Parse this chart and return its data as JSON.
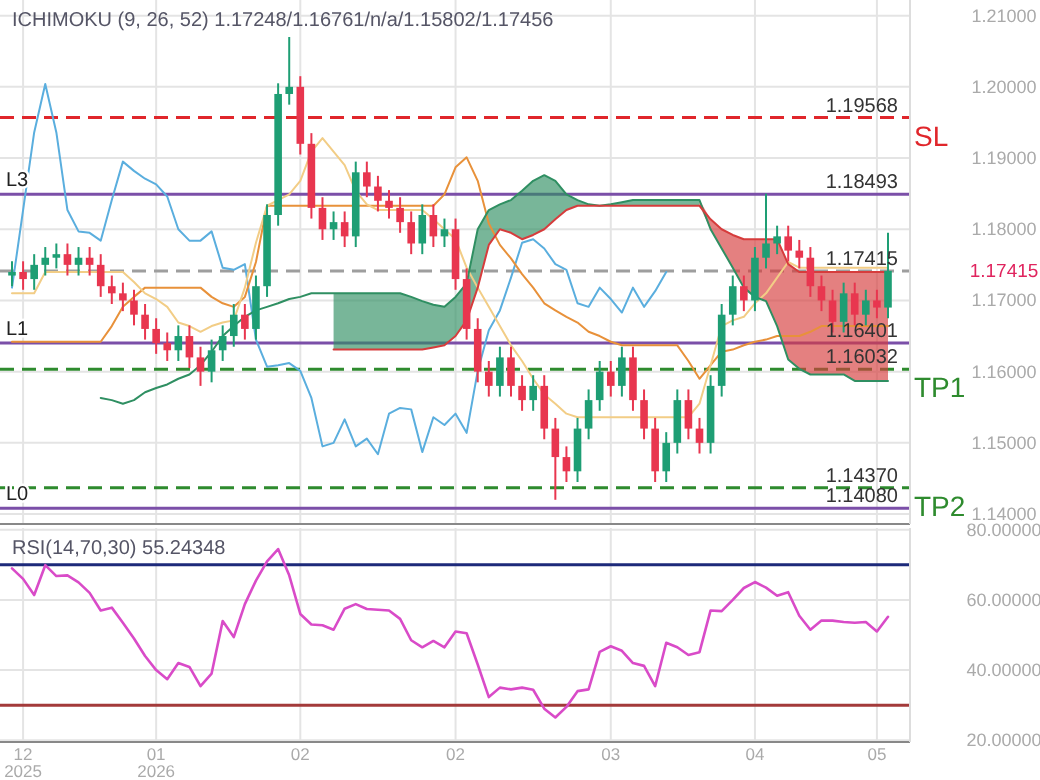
{
  "chart_data": [
    {
      "type": "candlestick",
      "title": "ICHIMOKU (9, 26, 52)   1.17248/1.16761/n/a/1.15802/1.17456",
      "categories": [
        null,
        null,
        null,
        null,
        null,
        null,
        null,
        null,
        null,
        null,
        null,
        null,
        null,
        null,
        null,
        null,
        null,
        null,
        null,
        null,
        null,
        null,
        null,
        null,
        null,
        null,
        null,
        null,
        null,
        null,
        null,
        null,
        null,
        null,
        null,
        null,
        null,
        null,
        null,
        null,
        null,
        null,
        null,
        null,
        null,
        null,
        null,
        null,
        null,
        null,
        null,
        null,
        null,
        null,
        null,
        null,
        null,
        null,
        null,
        null,
        null,
        null,
        null,
        null,
        null,
        null,
        null,
        null,
        null,
        null,
        null,
        null,
        null,
        null,
        null,
        null,
        null,
        null,
        null,
        null
      ],
      "ohlc": [
        [
          1.1735,
          1.1755,
          1.172,
          1.174
        ],
        [
          1.174,
          1.1755,
          1.1715,
          1.173
        ],
        [
          1.173,
          1.1765,
          1.1715,
          1.175
        ],
        [
          1.175,
          1.1775,
          1.1735,
          1.176
        ],
        [
          1.176,
          1.178,
          1.1745,
          1.1765
        ],
        [
          1.1765,
          1.178,
          1.1735,
          1.175
        ],
        [
          1.175,
          1.1775,
          1.1735,
          1.176
        ],
        [
          1.176,
          1.1775,
          1.1735,
          1.175
        ],
        [
          1.175,
          1.1765,
          1.1705,
          1.172
        ],
        [
          1.172,
          1.1735,
          1.1695,
          1.171
        ],
        [
          1.171,
          1.1725,
          1.1685,
          1.17
        ],
        [
          1.17,
          1.1715,
          1.1665,
          1.168
        ],
        [
          1.168,
          1.1695,
          1.1645,
          1.166
        ],
        [
          1.166,
          1.1675,
          1.1625,
          1.164
        ],
        [
          1.164,
          1.1655,
          1.1615,
          1.163
        ],
        [
          1.163,
          1.1665,
          1.1615,
          1.165
        ],
        [
          1.165,
          1.1665,
          1.1605,
          1.162
        ],
        [
          1.162,
          1.1635,
          1.158,
          1.16
        ],
        [
          1.16,
          1.1645,
          1.1585,
          1.163
        ],
        [
          1.163,
          1.1665,
          1.1615,
          1.165
        ],
        [
          1.165,
          1.1695,
          1.1635,
          1.168
        ],
        [
          1.168,
          1.1695,
          1.1645,
          1.166
        ],
        [
          1.166,
          1.1735,
          1.1645,
          1.172
        ],
        [
          1.172,
          1.1835,
          1.1705,
          1.182
        ],
        [
          1.182,
          1.2005,
          1.1805,
          1.199
        ],
        [
          1.199,
          1.207,
          1.1975,
          1.2
        ],
        [
          1.2,
          1.2015,
          1.1905,
          1.192
        ],
        [
          1.192,
          1.1935,
          1.1815,
          1.183
        ],
        [
          1.183,
          1.1845,
          1.1785,
          1.18
        ],
        [
          1.18,
          1.1825,
          1.1785,
          1.181
        ],
        [
          1.181,
          1.1825,
          1.1775,
          1.179
        ],
        [
          1.179,
          1.1895,
          1.1775,
          1.188
        ],
        [
          1.188,
          1.1895,
          1.1845,
          1.186
        ],
        [
          1.186,
          1.1875,
          1.1825,
          1.184
        ],
        [
          1.184,
          1.1855,
          1.1815,
          1.183
        ],
        [
          1.183,
          1.1845,
          1.1795,
          1.181
        ],
        [
          1.181,
          1.1825,
          1.1765,
          1.178
        ],
        [
          1.178,
          1.1835,
          1.1765,
          1.182
        ],
        [
          1.182,
          1.1835,
          1.1775,
          1.179
        ],
        [
          1.179,
          1.1815,
          1.1775,
          1.18
        ],
        [
          1.18,
          1.1815,
          1.1715,
          1.173
        ],
        [
          1.173,
          1.1745,
          1.1645,
          1.166
        ],
        [
          1.166,
          1.1675,
          1.1585,
          1.16
        ],
        [
          1.16,
          1.1615,
          1.1565,
          1.158
        ],
        [
          1.158,
          1.1635,
          1.1565,
          1.162
        ],
        [
          1.162,
          1.1635,
          1.1565,
          1.158
        ],
        [
          1.158,
          1.1595,
          1.1545,
          1.156
        ],
        [
          1.156,
          1.1595,
          1.1545,
          1.158
        ],
        [
          1.158,
          1.1595,
          1.1505,
          1.152
        ],
        [
          1.152,
          1.1535,
          1.142,
          1.148
        ],
        [
          1.148,
          1.1495,
          1.1445,
          1.146
        ],
        [
          1.146,
          1.1535,
          1.1445,
          1.152
        ],
        [
          1.152,
          1.1575,
          1.1505,
          1.156
        ],
        [
          1.156,
          1.1615,
          1.1545,
          1.16
        ],
        [
          1.16,
          1.1615,
          1.1565,
          1.158
        ],
        [
          1.158,
          1.1635,
          1.1565,
          1.162
        ],
        [
          1.162,
          1.1635,
          1.1545,
          1.156
        ],
        [
          1.156,
          1.1575,
          1.1505,
          1.152
        ],
        [
          1.152,
          1.1535,
          1.1445,
          1.146
        ],
        [
          1.146,
          1.1515,
          1.1445,
          1.15
        ],
        [
          1.15,
          1.1575,
          1.1485,
          1.156
        ],
        [
          1.156,
          1.1575,
          1.1505,
          1.152
        ],
        [
          1.152,
          1.1535,
          1.1485,
          1.15
        ],
        [
          1.15,
          1.1595,
          1.1485,
          1.158
        ],
        [
          1.158,
          1.1695,
          1.1565,
          1.168
        ],
        [
          1.168,
          1.1735,
          1.1665,
          1.172
        ],
        [
          1.172,
          1.1735,
          1.1685,
          1.17
        ],
        [
          1.17,
          1.1775,
          1.1685,
          1.176
        ],
        [
          1.176,
          1.185,
          1.1745,
          1.178
        ],
        [
          1.178,
          1.1805,
          1.1765,
          1.179
        ],
        [
          1.179,
          1.1805,
          1.1755,
          1.177
        ],
        [
          1.177,
          1.1785,
          1.1745,
          1.176
        ],
        [
          1.176,
          1.1775,
          1.1705,
          1.172
        ],
        [
          1.172,
          1.1735,
          1.1685,
          1.17
        ],
        [
          1.17,
          1.1715,
          1.1655,
          1.167
        ],
        [
          1.167,
          1.1725,
          1.1655,
          1.171
        ],
        [
          1.171,
          1.1725,
          1.1665,
          1.168
        ],
        [
          1.168,
          1.1715,
          1.1665,
          1.17
        ],
        [
          1.17,
          1.1715,
          1.1675,
          1.169
        ],
        [
          1.169,
          1.1795,
          1.1675,
          1.17415
        ]
      ],
      "colors": [
        "#1e9e74",
        "#e8364f",
        "#1e9e74",
        "#1e9e74",
        "#1e9e74",
        "#e8364f",
        "#1e9e74",
        "#e8364f",
        "#e8364f",
        "#e8364f",
        "#e8364f",
        "#e8364f",
        "#e8364f",
        "#e8364f",
        "#e8364f",
        "#1e9e74",
        "#e8364f",
        "#e8364f",
        "#1e9e74",
        "#1e9e74",
        "#1e9e74",
        "#e8364f",
        "#1e9e74",
        "#1e9e74",
        "#1e9e74",
        "#1e9e74",
        "#e8364f",
        "#e8364f",
        "#e8364f",
        "#1e9e74",
        "#e8364f",
        "#1e9e74",
        "#e8364f",
        "#e8364f",
        "#e8364f",
        "#e8364f",
        "#e8364f",
        "#1e9e74",
        "#e8364f",
        "#1e9e74",
        "#e8364f",
        "#e8364f",
        "#e8364f",
        "#e8364f",
        "#1e9e74",
        "#e8364f",
        "#e8364f",
        "#1e9e74",
        "#e8364f",
        "#e8364f",
        "#e8364f",
        "#1e9e74",
        "#1e9e74",
        "#1e9e74",
        "#e8364f",
        "#1e9e74",
        "#e8364f",
        "#e8364f",
        "#e8364f",
        "#1e9e74",
        "#1e9e74",
        "#e8364f",
        "#e8364f",
        "#1e9e74",
        "#1e9e74",
        "#1e9e74",
        "#e8364f",
        "#1e9e74",
        "#1e9e74",
        "#1e9e74",
        "#e8364f",
        "#e8364f",
        "#e8364f",
        "#e8364f",
        "#e8364f",
        "#1e9e74",
        "#e8364f",
        "#1e9e74",
        "#e8364f",
        "#1e9e74"
      ],
      "series": [
        {
          "type": "line",
          "color": "#5aaede",
          "values": [
            1.1718,
            1.1827,
            1.1936,
            1.2004,
            1.1936,
            1.1827,
            1.1797,
            1.1795,
            1.1784,
            1.1841,
            1.1895,
            1.1882,
            1.1871,
            1.1863,
            1.1846,
            1.18,
            1.1784,
            1.1784,
            1.1797,
            1.1746,
            1.1743,
            1.1751,
            1.1645,
            1.1607,
            1.1609,
            1.1612,
            1.1601,
            1.1563,
            1.1495,
            1.15,
            1.1533,
            1.1495,
            1.1506,
            1.1484,
            1.1541,
            1.1549,
            1.1547,
            1.1487,
            1.1536,
            1.1525,
            1.1541,
            1.1514,
            1.1601,
            1.1658,
            1.1686,
            1.1732,
            1.1781,
            1.1786,
            1.1773,
            1.1751,
            1.1743,
            1.1696,
            1.1691,
            1.1718,
            1.1702,
            1.1683,
            1.1718,
            1.1691,
            1.1713,
            1.174,
            null,
            null,
            null,
            null,
            null,
            null,
            null,
            null,
            null,
            null,
            null,
            null,
            null,
            null,
            null,
            null,
            null,
            null,
            null,
            null
          ]
        },
        {
          "type": "line",
          "color": "#e8913a",
          "values": [
            1.1642,
            1.1642,
            1.1642,
            1.1642,
            1.1642,
            1.1642,
            1.1642,
            1.1642,
            1.1642,
            1.1664,
            1.1691,
            1.1705,
            1.1718,
            1.1718,
            1.1718,
            1.1718,
            1.1718,
            1.1718,
            1.1705,
            1.1696,
            1.1691,
            1.1705,
            1.1754,
            1.1833,
            1.1833,
            1.1833,
            1.1833,
            1.1833,
            1.1833,
            1.1833,
            1.1833,
            1.1833,
            1.1833,
            1.1833,
            1.1833,
            1.1833,
            1.1833,
            1.1833,
            1.1833,
            1.1849,
            1.1887,
            1.1901,
            1.1868,
            1.1808,
            1.1778,
            1.1759,
            1.1737,
            1.1718,
            1.1696,
            1.1686,
            1.1677,
            1.1669,
            1.1656,
            1.165,
            1.1642,
            1.1637,
            1.1637,
            1.1637,
            1.1637,
            1.1637,
            1.1637,
            1.1615,
            1.159,
            1.1609,
            1.1628,
            1.1631,
            1.1637,
            1.1642,
            1.1645,
            1.165,
            1.165,
            1.165,
            1.1656,
            1.1664,
            1.1664,
            1.1664,
            1.1664,
            1.1664,
            1.1664,
            1.1664
          ]
        },
        {
          "type": "line",
          "color": "#f2cd86",
          "values": [
            1.171,
            1.171,
            1.171,
            1.174,
            1.174,
            1.174,
            1.174,
            1.174,
            1.174,
            1.174,
            1.174,
            1.1726,
            1.171,
            1.1702,
            1.1691,
            1.1669,
            1.1664,
            1.1656,
            1.1664,
            1.1669,
            1.1672,
            1.1718,
            1.1781,
            1.1833,
            1.1841,
            1.1849,
            1.1868,
            1.1909,
            1.1928,
            1.1909,
            1.189,
            1.1854,
            1.1835,
            1.1827,
            1.1827,
            1.1827,
            1.1827,
            1.1827,
            1.1814,
            1.18,
            1.1786,
            1.1746,
            1.1718,
            1.1691,
            1.1664,
            1.1637,
            1.1615,
            1.159,
            1.1568,
            1.1555,
            1.1541,
            1.1536,
            1.1536,
            1.1536,
            1.1536,
            1.1536,
            1.1536,
            1.1536,
            1.1536,
            1.1536,
            1.1536,
            1.1536,
            1.1555,
            1.1609,
            1.1664,
            1.1672,
            1.1677,
            1.1696,
            1.171,
            1.1732,
            1.1754,
            1.1746,
            1.1746,
            1.1746,
            1.1746,
            1.1746,
            1.1746,
            1.1746,
            1.1746,
            1.1746
          ]
        },
        {
          "type": "line",
          "color": "#2f8f62",
          "lower": [
            null,
            null,
            null,
            null,
            null,
            null,
            null,
            null,
            null,
            null,
            null,
            null,
            null,
            null,
            null,
            null,
            null,
            null,
            null,
            null,
            null,
            null,
            null,
            null,
            null,
            null,
            null,
            null,
            null,
            1.1631,
            1.1631,
            1.1631,
            1.1631,
            1.1631,
            1.1631,
            1.1631,
            1.1631,
            1.1631,
            1.1634,
            1.1637,
            1.165,
            1.1672,
            1.1718,
            1.1778,
            1.18,
            1.1795,
            1.1786,
            1.1792,
            1.18,
            1.1814,
            1.1827,
            1.1833,
            1.1833,
            1.1833,
            1.1833,
            1.1833,
            1.1833,
            1.1833,
            1.1833,
            1.1833,
            1.1833,
            1.1833,
            1.1833,
            null,
            null,
            null,
            null,
            null,
            null,
            null,
            null,
            null,
            null,
            null,
            null,
            null,
            null,
            null,
            null,
            null
          ],
          "upper": [
            null,
            null,
            null,
            null,
            null,
            null,
            null,
            null,
            null,
            null,
            null,
            null,
            null,
            null,
            null,
            null,
            null,
            null,
            null,
            null,
            null,
            null,
            null,
            null,
            null,
            null,
            null,
            null,
            null,
            1.171,
            1.171,
            1.171,
            1.171,
            1.171,
            1.171,
            1.171,
            1.1705,
            1.1699,
            1.1694,
            1.1691,
            1.1705,
            1.1724,
            1.18,
            1.1827,
            1.1835,
            1.1841,
            1.1854,
            1.1868,
            1.1876,
            1.1868,
            1.1849,
            1.1841,
            1.1835,
            1.1833,
            1.1835,
            1.1838,
            1.1841,
            1.1841,
            1.1841,
            1.1841,
            1.1841,
            1.1841,
            1.1841,
            null,
            null,
            null,
            null,
            null,
            null,
            null,
            null,
            null,
            null,
            null,
            null,
            null,
            null,
            null,
            null,
            null
          ],
          "values": [
            null,
            null,
            null,
            null,
            null,
            null,
            null,
            null,
            1.1563,
            1.156,
            1.1555,
            1.156,
            1.1571,
            1.1577,
            1.1582,
            1.159,
            1.1596,
            1.1609,
            1.1628,
            1.165,
            1.1664,
            1.1677,
            1.1686,
            1.1691,
            1.1696,
            1.1702,
            1.1705,
            1.171,
            1.171,
            1.171,
            1.171,
            1.171,
            1.171,
            1.171,
            1.171,
            1.171,
            1.1705,
            1.1699,
            1.1694,
            1.1691,
            1.1705,
            1.1724,
            1.18,
            1.1827,
            1.1835,
            1.1841,
            1.1854,
            1.1868,
            1.1876,
            1.1868,
            1.1849,
            1.1841,
            1.1835,
            1.1833,
            1.1835,
            1.1838,
            1.1841,
            1.1841,
            1.1841,
            1.1841,
            1.1841,
            1.1841,
            1.1841,
            1.18,
            1.1773,
            1.1746,
            1.1718,
            1.1705,
            1.1699,
            1.1664,
            1.1617,
            1.1604,
            1.1596,
            1.1596,
            1.1596,
            1.1596,
            1.1587,
            1.1587,
            1.1587,
            1.1587
          ]
        },
        {
          "type": "line",
          "color": "#d63c3c",
          "lower": [
            null,
            null,
            null,
            null,
            null,
            null,
            null,
            null,
            null,
            null,
            null,
            null,
            null,
            null,
            null,
            null,
            null,
            null,
            null,
            null,
            null,
            null,
            null,
            null,
            null,
            null,
            null,
            null,
            null,
            null,
            null,
            null,
            null,
            null,
            null,
            null,
            null,
            null,
            null,
            null,
            null,
            null,
            null,
            null,
            null,
            null,
            null,
            null,
            null,
            null,
            null,
            null,
            null,
            null,
            null,
            null,
            null,
            null,
            null,
            null,
            null,
            null,
            1.1833,
            1.18,
            1.1773,
            1.1746,
            1.1718,
            1.1705,
            1.1699,
            1.1664,
            1.1617,
            1.1604,
            1.1596,
            1.1596,
            1.1596,
            1.1596,
            1.1587,
            1.1587,
            1.1587,
            1.1587
          ],
          "upper": [
            null,
            null,
            null,
            null,
            null,
            null,
            null,
            null,
            null,
            null,
            null,
            null,
            null,
            null,
            null,
            null,
            null,
            null,
            null,
            null,
            null,
            null,
            null,
            null,
            null,
            null,
            null,
            null,
            null,
            null,
            null,
            null,
            null,
            null,
            null,
            null,
            null,
            null,
            null,
            null,
            null,
            null,
            null,
            null,
            null,
            null,
            null,
            null,
            null,
            null,
            null,
            null,
            null,
            null,
            null,
            null,
            null,
            null,
            null,
            null,
            null,
            null,
            1.1841,
            1.1814,
            1.18,
            1.1792,
            1.1786,
            1.1786,
            1.1786,
            1.1786,
            1.1751,
            1.174,
            1.174,
            1.174,
            1.174,
            1.174,
            1.174,
            1.174,
            1.174,
            1.174
          ],
          "values": [
            null,
            null,
            null,
            null,
            null,
            null,
            null,
            null,
            null,
            null,
            null,
            null,
            null,
            null,
            null,
            null,
            null,
            null,
            null,
            null,
            null,
            null,
            null,
            null,
            null,
            null,
            null,
            null,
            null,
            1.1631,
            1.1631,
            1.1631,
            1.1631,
            1.1631,
            1.1631,
            1.1631,
            1.1631,
            1.1631,
            1.1634,
            1.1637,
            1.165,
            1.1672,
            1.1718,
            1.1778,
            1.18,
            1.1795,
            1.1786,
            1.1792,
            1.18,
            1.1814,
            1.1827,
            1.1833,
            1.1833,
            1.1833,
            1.1833,
            1.1833,
            1.1833,
            1.1833,
            1.1833,
            1.1833,
            1.1833,
            1.1833,
            1.1833,
            1.1814,
            1.18,
            1.1792,
            1.1786,
            1.1786,
            1.1786,
            1.1786,
            1.1751,
            1.174,
            1.174,
            1.174,
            1.174,
            1.174,
            1.174,
            1.174,
            1.174,
            1.174
          ]
        }
      ],
      "ylim": [
        1.1386,
        1.2122
      ],
      "yticks": [
        {
          "value": 1.14,
          "label": "1.14000"
        },
        {
          "value": 1.15,
          "label": "1.15000"
        },
        {
          "value": 1.16,
          "label": "1.16000"
        },
        {
          "value": 1.17,
          "label": "1.17000"
        },
        {
          "value": 1.18,
          "label": "1.18000"
        },
        {
          "value": 1.19,
          "label": "1.19000"
        },
        {
          "value": 1.2,
          "label": "1.20000"
        },
        {
          "value": 1.21,
          "label": "1.21000"
        }
      ],
      "grid": true,
      "tick_labels": "y",
      "ref_lines": [
        {
          "axis": "y",
          "value": 1.19568,
          "label": "SL",
          "color": "#e0262b",
          "line_style": "dashed"
        },
        {
          "axis": "y",
          "value": 1.18493,
          "label": "L3",
          "color": "#7b4fa8",
          "line_style": "solid"
        },
        {
          "axis": "y",
          "value": 1.17415,
          "label": null,
          "color": "#9e9e9e",
          "line_style": "dashed"
        },
        {
          "axis": "y",
          "value": 1.16401,
          "label": "L1",
          "color": "#7b4fa8",
          "line_style": "solid"
        },
        {
          "axis": "y",
          "value": 1.16032,
          "label": "TP1",
          "color": "#2e8b2e",
          "line_style": "dashed"
        },
        {
          "axis": "y",
          "value": 1.1437,
          "label": "TP2",
          "color": "#2e8b2e",
          "line_style": "dashed"
        },
        {
          "axis": "y",
          "value": 1.1408,
          "label": "L0",
          "color": "#7b4fa8",
          "line_style": "solid"
        }
      ],
      "annotations": [
        {
          "text": "1.19568",
          "y": 1.19568
        },
        {
          "text": "1.18493",
          "y": 1.18493
        },
        {
          "text": "1.17415",
          "y": 1.17415
        },
        {
          "text": "1.16401",
          "y": 1.16401
        },
        {
          "text": "1.16032",
          "y": 1.16032
        },
        {
          "text": "1.14370",
          "y": 1.1437
        },
        {
          "text": "1.14080",
          "y": 1.1408
        }
      ]
    },
    {
      "type": "line",
      "title": "RSI(14,70,30)   55.24348",
      "categories": [
        null,
        "12\n2025",
        null,
        null,
        null,
        null,
        null,
        null,
        null,
        null,
        null,
        null,
        null,
        "01\n2026",
        null,
        null,
        null,
        null,
        null,
        null,
        null,
        null,
        null,
        null,
        null,
        null,
        "02",
        null,
        null,
        null,
        null,
        null,
        null,
        null,
        null,
        null,
        null,
        null,
        null,
        null,
        "02",
        null,
        null,
        null,
        null,
        null,
        null,
        null,
        null,
        null,
        null,
        null,
        null,
        null,
        "03",
        null,
        null,
        null,
        null,
        null,
        null,
        null,
        null,
        null,
        null,
        null,
        null,
        "04",
        null,
        null,
        null,
        null,
        null,
        null,
        null,
        null,
        null,
        null,
        "05",
        null
      ],
      "series": [
        {
          "color": "#d94bc8",
          "values": [
            69,
            66,
            61.4,
            69.9,
            66.8,
            67,
            65,
            62,
            57,
            57.8,
            53.5,
            49,
            44,
            40,
            37.4,
            42,
            40.9,
            35.4,
            39,
            54,
            49.4,
            58.8,
            65.5,
            71,
            74.5,
            67,
            56,
            53,
            52.8,
            51.5,
            57.5,
            58.8,
            57.4,
            57.2,
            57,
            54.6,
            48.5,
            46.5,
            48.3,
            46.5,
            51,
            50.5,
            41.6,
            32.3,
            35,
            34.5,
            35,
            34.4,
            29,
            26.5,
            29.5,
            34,
            34.5,
            45.2,
            46.8,
            45.5,
            42,
            41.2,
            35.4,
            47.8,
            46.5,
            44.3,
            45.1,
            57,
            56.8,
            60,
            63.4,
            65.1,
            63.5,
            61.2,
            62.2,
            55.5,
            51.5,
            54.1,
            54.1,
            53.7,
            53.5,
            53.7,
            51,
            55.2
          ]
        }
      ],
      "ylim": [
        19.5,
        80.5
      ],
      "yticks": [
        {
          "value": 20,
          "label": "20.00000"
        },
        {
          "value": 40,
          "label": "40.00000"
        },
        {
          "value": 60,
          "label": "60.00000"
        },
        {
          "value": 80,
          "label": "80.00000"
        }
      ],
      "grid": true,
      "ref_lines": [
        {
          "axis": "y",
          "value": 70,
          "label": null,
          "color": "#1d2a7a",
          "line_style": "solid"
        },
        {
          "axis": "y",
          "value": 30,
          "label": null,
          "color": "#a33a3a",
          "line_style": "solid"
        }
      ]
    }
  ]
}
